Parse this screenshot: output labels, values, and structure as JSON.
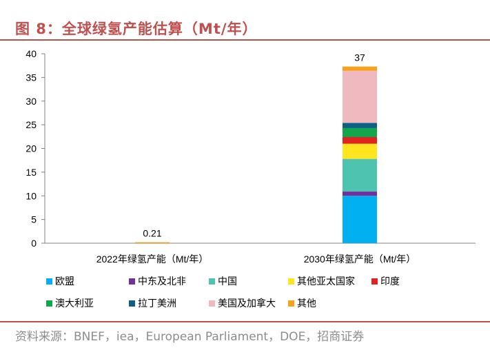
{
  "header": {
    "title": "图 8：全球绿氢产能估算（Mt/年）"
  },
  "chart_data": {
    "type": "bar",
    "stacked": true,
    "categories": [
      "2022年绿氢产能（Mt/年）",
      "2030年绿氢产能（Mt/年）"
    ],
    "totals": [
      "0.21",
      "37"
    ],
    "ylim": [
      0,
      40
    ],
    "yticks": [
      0,
      5,
      10,
      15,
      20,
      25,
      30,
      35,
      40
    ],
    "grid": false,
    "legend_position": "bottom",
    "series": [
      {
        "name": "欧盟",
        "color": "#00b0f0",
        "values": [
          0,
          10
        ]
      },
      {
        "name": "中东及北非",
        "color": "#7030a0",
        "values": [
          0,
          0.9
        ]
      },
      {
        "name": "中国",
        "color": "#4ec3b0",
        "values": [
          0,
          6.9
        ]
      },
      {
        "name": "其他亚太国家",
        "color": "#ffe51f",
        "values": [
          0,
          3.2
        ]
      },
      {
        "name": "印度",
        "color": "#e32322",
        "values": [
          0,
          1.4
        ]
      },
      {
        "name": "澳大利亚",
        "color": "#12a74c",
        "values": [
          0,
          1.9
        ]
      },
      {
        "name": "拉丁美洲",
        "color": "#0b6083",
        "values": [
          0,
          1.1
        ]
      },
      {
        "name": "美国及加拿大",
        "color": "#f0b8bf",
        "values": [
          0,
          11.0
        ]
      },
      {
        "name": "其他",
        "color": "#f7a21b",
        "values": [
          0.21,
          0.9
        ]
      }
    ]
  },
  "footer": {
    "source": "资料来源：BNEF，iea，European Parliament，DOE，招商证券"
  }
}
